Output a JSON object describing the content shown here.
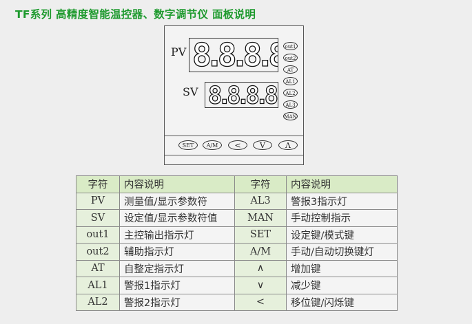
{
  "title": "TF系列 高精度智能温控器、数字调节仪 面板说明",
  "panel": {
    "pv_label": "PV",
    "sv_label": "SV",
    "pv_digits": "8.8.8.8.",
    "sv_digits": "8.8.8.8.",
    "indicators": [
      "out1",
      "out2",
      "AT",
      "AL1",
      "AL2",
      "AL3",
      "MAN"
    ],
    "keys": [
      {
        "label": "SET",
        "name": "set"
      },
      {
        "label": "A/M",
        "name": "am"
      },
      {
        "label": "<",
        "name": "shift"
      },
      {
        "label": "V",
        "name": "down"
      },
      {
        "label": "Λ",
        "name": "up"
      }
    ]
  },
  "table": {
    "headers": [
      "字符",
      "内容说明",
      "字符",
      "内容说明"
    ],
    "rows": [
      [
        "PV",
        "测量值/显示参数符",
        "AL3",
        "警报3指示灯"
      ],
      [
        "SV",
        "设定值/显示参数符值",
        "MAN",
        "手动控制指示"
      ],
      [
        "out1",
        "主控输出指示灯",
        "SET",
        "设定键/模式键"
      ],
      [
        "out2",
        "辅助指示灯",
        "A/M",
        "手动/自动切换键灯"
      ],
      [
        "AT",
        "自整定指示灯",
        "∧",
        "增加键"
      ],
      [
        "AL1",
        "警报1指示灯",
        "∨",
        "减少键"
      ],
      [
        "AL2",
        "警报2指示灯",
        "<",
        "移位键/闪烁键"
      ]
    ]
  }
}
